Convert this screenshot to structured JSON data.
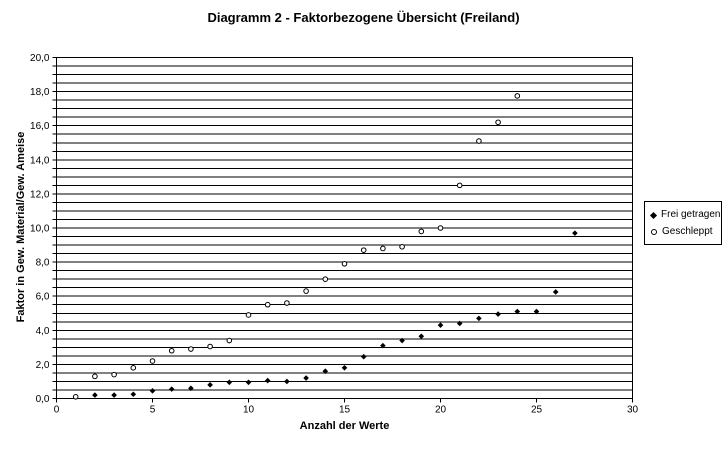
{
  "title": "Diagramm 2 - Faktorbezogene Übersicht (Freiland)",
  "colors": {
    "marker": "#000000",
    "grid": "#000000",
    "background": "#ffffff"
  },
  "chart_data": {
    "type": "scatter",
    "title": "Diagramm 2 - Faktorbezogene Übersicht (Freiland)",
    "xlabel": "Anzahl der Werte",
    "ylabel": "Faktor in Gew. Material/Gew. Ameise",
    "xlim": [
      0,
      30
    ],
    "ylim": [
      0,
      20
    ],
    "y_grid_step": 0.5,
    "grid_on": true,
    "legend_position": "right",
    "x_tick_labels": [
      "0",
      "5",
      "10",
      "15",
      "20",
      "25",
      "30"
    ],
    "x_tick_values": [
      0,
      5,
      10,
      15,
      20,
      25,
      30
    ],
    "y_tick_labels": [
      "0,0",
      "2,0",
      "4,0",
      "6,0",
      "8,0",
      "10,0",
      "12,0",
      "14,0",
      "16,0",
      "18,0",
      "20,0"
    ],
    "y_tick_values": [
      0,
      2,
      4,
      6,
      8,
      10,
      12,
      14,
      16,
      18,
      20
    ],
    "series": [
      {
        "name": "Frei getragen",
        "marker": "filled-diamond",
        "points": [
          [
            2,
            0.2
          ],
          [
            3,
            0.2
          ],
          [
            4,
            0.25
          ],
          [
            5,
            0.45
          ],
          [
            6,
            0.55
          ],
          [
            7,
            0.6
          ],
          [
            8,
            0.8
          ],
          [
            9,
            0.95
          ],
          [
            10,
            0.95
          ],
          [
            11,
            1.05
          ],
          [
            12,
            1.0
          ],
          [
            13,
            1.2
          ],
          [
            14,
            1.6
          ],
          [
            15,
            1.8
          ],
          [
            16,
            2.45
          ],
          [
            17,
            3.1
          ],
          [
            18,
            3.4
          ],
          [
            19,
            3.65
          ],
          [
            20,
            4.3
          ],
          [
            21,
            4.4
          ],
          [
            22,
            4.7
          ],
          [
            23,
            4.95
          ],
          [
            24,
            5.1
          ],
          [
            25,
            5.1
          ],
          [
            26,
            6.25
          ],
          [
            27,
            9.7
          ]
        ]
      },
      {
        "name": "Geschleppt",
        "marker": "open-circle",
        "points": [
          [
            1,
            0.1
          ],
          [
            2,
            1.3
          ],
          [
            3,
            1.4
          ],
          [
            4,
            1.8
          ],
          [
            5,
            2.2
          ],
          [
            6,
            2.8
          ],
          [
            7,
            2.9
          ],
          [
            8,
            3.05
          ],
          [
            9,
            3.4
          ],
          [
            10,
            4.9
          ],
          [
            11,
            5.5
          ],
          [
            12,
            5.6
          ],
          [
            13,
            6.3
          ],
          [
            14,
            7.0
          ],
          [
            15,
            7.9
          ],
          [
            16,
            8.7
          ],
          [
            17,
            8.8
          ],
          [
            18,
            8.9
          ],
          [
            19,
            9.8
          ],
          [
            20,
            10.0
          ],
          [
            21,
            12.5
          ],
          [
            22,
            15.1
          ],
          [
            23,
            16.2
          ],
          [
            24,
            17.75
          ]
        ]
      }
    ]
  }
}
